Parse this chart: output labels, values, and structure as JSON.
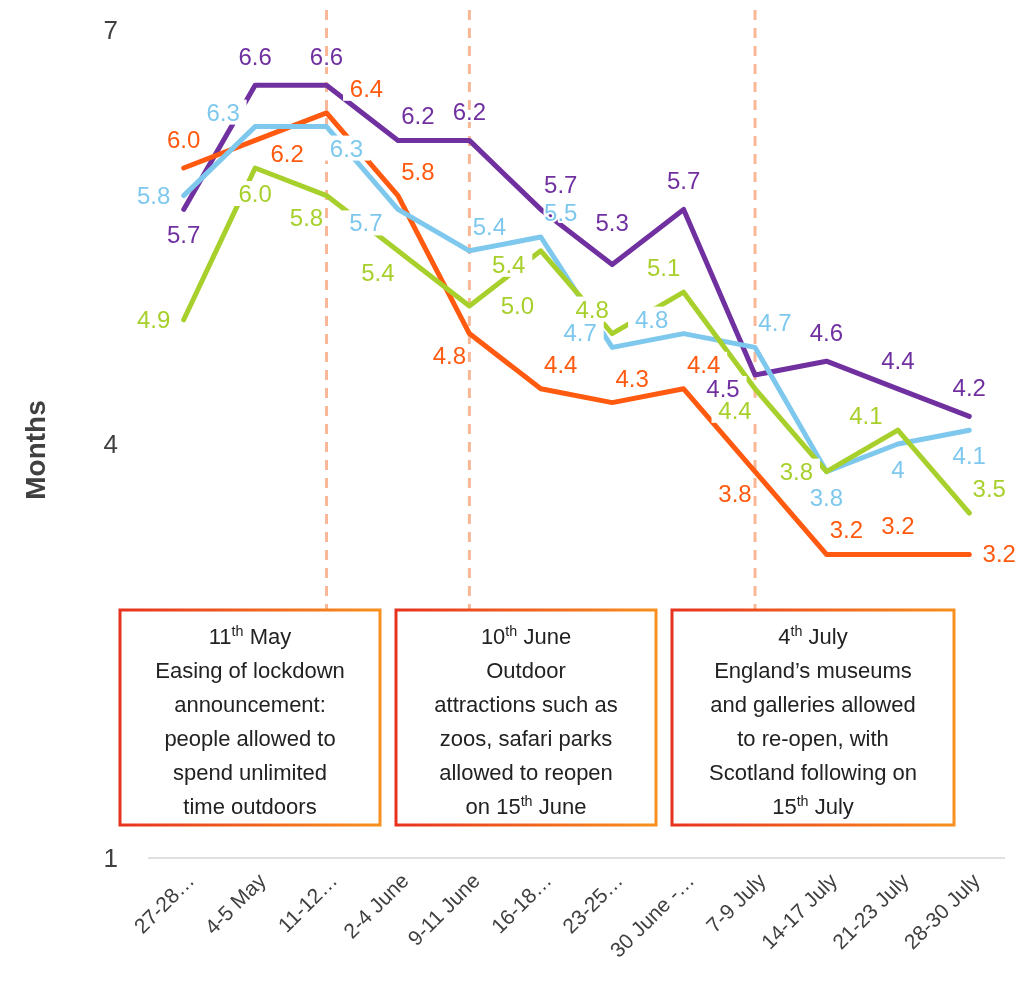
{
  "chart_data": {
    "type": "line",
    "ylabel": "Months",
    "categories": [
      "27-28…",
      "4-5 May",
      "11-12…",
      "2-4 June",
      "9-11 June",
      "16-18…",
      "23-25…",
      "30 June -…",
      "7-9 July",
      "14-17 July",
      "21-23 July",
      "28-30 July"
    ],
    "series": [
      {
        "color": "#7030a0",
        "values": [
          5.7,
          6.6,
          6.6,
          6.2,
          6.2,
          5.7,
          5.3,
          5.7,
          4.5,
          4.6,
          4.4,
          4.2
        ],
        "value_labels": [
          "5.7",
          "6.6",
          "6.6",
          "6.2",
          "6.2",
          "5.7",
          "5.3",
          "5.7",
          "4.5",
          "4.6",
          "4.4",
          "4.2"
        ]
      },
      {
        "color": "#ff5a10",
        "values": [
          6.0,
          6.2,
          6.4,
          5.8,
          4.8,
          4.4,
          4.3,
          4.4,
          3.8,
          3.2,
          3.2,
          3.2
        ],
        "value_labels": [
          "6.0",
          "6.2",
          "6.4",
          "5.8",
          "4.8",
          "4.4",
          "4.3",
          "4.4",
          "3.8",
          "3.2",
          "3.2",
          "3.2"
        ]
      },
      {
        "color": "#7ec8ee",
        "values": [
          5.8,
          6.3,
          6.3,
          5.7,
          5.4,
          5.5,
          4.7,
          4.8,
          4.7,
          3.8,
          4.0,
          4.1
        ],
        "value_labels": [
          "5.8",
          "6.3",
          "6.3",
          "5.7",
          "5.4",
          "5.5",
          "4.7",
          "4.8",
          "4.7",
          "3.8",
          "4",
          "4.1"
        ]
      },
      {
        "color": "#a8d02c",
        "values": [
          4.9,
          6.0,
          5.8,
          5.4,
          5.0,
          5.4,
          4.8,
          5.1,
          4.4,
          3.8,
          4.1,
          3.5
        ],
        "value_labels": [
          "4.9",
          "6.0",
          "5.8",
          "5.4",
          "5.0",
          "5.4",
          "4.8",
          "5.1",
          "4.4",
          "3.8",
          "4.1",
          "3.5"
        ]
      }
    ],
    "ylim": [
      1,
      7
    ],
    "yticks": [
      1,
      4,
      7
    ],
    "grid": false,
    "marker": "none",
    "line_style": "solid",
    "ref_lines": [
      {
        "axis": "x",
        "value": "11-12…",
        "color": "#f8b898",
        "line_style": "dashed"
      },
      {
        "axis": "x",
        "value": "9-11 June",
        "color": "#f8b898",
        "line_style": "dashed"
      },
      {
        "axis": "x",
        "value": "7-9 July",
        "color": "#f8b898",
        "line_style": "dashed"
      }
    ],
    "annotations": [
      "11$^{th}$ May\nEasing of lockdown\nannouncement:\npeople allowed to\nspend unlimited\ntime outdoors",
      "10$^{th}$ June\nOutdoor\nattractions such as\nzoos, safari parks\nallowed to reopen\non 15$^{th}$ June",
      "4$^{th}$ July\nEngland’s museums\nand galleries allowed\nto re-open, with\nScotland following on\n15$^{th}$ July"
    ]
  }
}
